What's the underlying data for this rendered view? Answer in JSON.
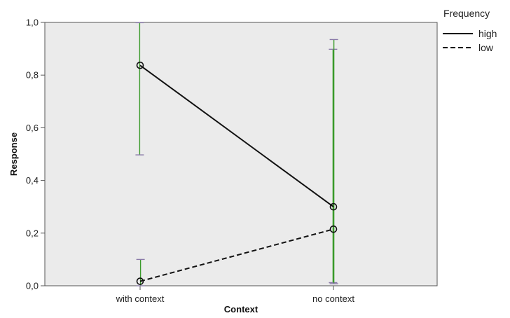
{
  "chart_data": {
    "type": "line",
    "xlabel": "Context",
    "ylabel": "Response",
    "categories": [
      "with context",
      "no context"
    ],
    "ylim": [
      0.0,
      1.0
    ],
    "yticks": [
      "0,0",
      "0,2",
      "0,4",
      "0,6",
      "0,8",
      "1,0"
    ],
    "ytick_values": [
      0.0,
      0.2,
      0.4,
      0.6,
      0.8,
      1.0
    ],
    "legend": {
      "title": "Frequency",
      "placement": "top-right, outside plot"
    },
    "series": [
      {
        "name": "high",
        "style": "solid",
        "values": [
          0.837,
          0.3
        ],
        "error_low": [
          0.497,
          0.012
        ],
        "error_high": [
          0.999,
          0.898
        ]
      },
      {
        "name": "low",
        "style": "dashed",
        "values": [
          0.017,
          0.215
        ],
        "error_low": [
          0.0,
          0.008
        ],
        "error_high": [
          0.1,
          0.935
        ]
      }
    ],
    "colors": {
      "plot_background": "#ebebeb",
      "line": "#111111",
      "error_bar": "#3a9a2a",
      "error_cap": "#8a7aa8"
    },
    "grid": false
  }
}
